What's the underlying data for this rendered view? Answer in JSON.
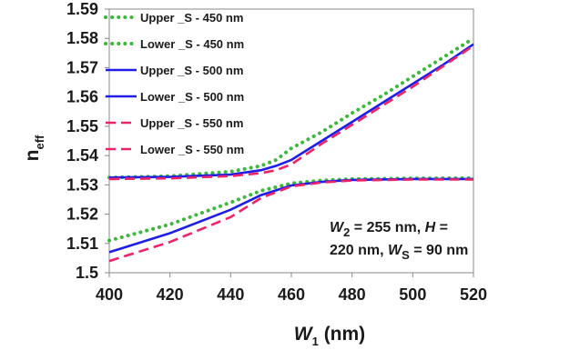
{
  "chart_data": {
    "type": "line",
    "xlabel": {
      "main": "W",
      "sub": "1",
      "unit": " (nm)"
    },
    "ylabel": {
      "main": "n",
      "sub": "eff"
    },
    "xlim": [
      400,
      520
    ],
    "ylim": [
      1.5,
      1.59
    ],
    "xticks": [
      400,
      420,
      440,
      460,
      480,
      500,
      520
    ],
    "yticks": [
      1.5,
      1.51,
      1.52,
      1.53,
      1.54,
      1.55,
      1.56,
      1.57,
      1.58,
      1.59
    ],
    "ytick_labels": [
      "1.5",
      "1.51",
      "1.52",
      "1.53",
      "1.54",
      "1.55",
      "1.56",
      "1.57",
      "1.58",
      "1.59"
    ],
    "grid": false,
    "legend_position": "top-left",
    "annotation": {
      "line1_prefix": "W",
      "line1_sub": "2",
      "line1_rest": " = 255 nm, ",
      "line1_h": "H",
      "line1_end": " =",
      "line2_start": "220 nm, ",
      "line2_w": "W",
      "line2_sub": "S",
      "line2_end": " = 90 nm"
    },
    "series": [
      {
        "name": "Upper _S - 450 nm",
        "color": "#3cb83c",
        "style": "dotted",
        "x": [
          400,
          420,
          440,
          450,
          455,
          460,
          470,
          480,
          490,
          500,
          510,
          520
        ],
        "y": [
          1.5325,
          1.533,
          1.5345,
          1.5365,
          1.5385,
          1.5425,
          1.548,
          1.5545,
          1.5605,
          1.567,
          1.5735,
          1.58
        ]
      },
      {
        "name": "Lower _S - 450 nm",
        "color": "#3cb83c",
        "style": "dotted",
        "x": [
          400,
          420,
          440,
          450,
          460,
          470,
          480,
          500,
          520
        ],
        "y": [
          1.511,
          1.5165,
          1.524,
          1.528,
          1.5305,
          1.5315,
          1.532,
          1.5322,
          1.5323
        ]
      },
      {
        "name": "Upper _S - 500 nm",
        "color": "#1e1ee6",
        "style": "solid",
        "x": [
          400,
          420,
          440,
          450,
          455,
          460,
          470,
          480,
          490,
          500,
          510,
          520
        ],
        "y": [
          1.5325,
          1.5327,
          1.5335,
          1.535,
          1.5365,
          1.5385,
          1.545,
          1.5515,
          1.558,
          1.5645,
          1.571,
          1.578
        ]
      },
      {
        "name": "Lower _S - 500 nm",
        "color": "#1e1ee6",
        "style": "solid",
        "x": [
          400,
          420,
          440,
          450,
          460,
          470,
          480,
          500,
          520
        ],
        "y": [
          1.507,
          1.5135,
          1.5215,
          1.5265,
          1.5298,
          1.531,
          1.5317,
          1.532,
          1.532
        ]
      },
      {
        "name": "Upper _S - 550 nm",
        "color": "#ee2266",
        "style": "dashed",
        "x": [
          400,
          420,
          440,
          450,
          455,
          460,
          470,
          480,
          490,
          500,
          510,
          520
        ],
        "y": [
          1.532,
          1.5322,
          1.533,
          1.534,
          1.535,
          1.537,
          1.544,
          1.5505,
          1.557,
          1.5635,
          1.5705,
          1.5775
        ]
      },
      {
        "name": "Lower _S - 550 nm",
        "color": "#ee2266",
        "style": "dashed",
        "x": [
          400,
          420,
          440,
          450,
          460,
          470,
          480,
          500,
          520
        ],
        "y": [
          1.504,
          1.5105,
          1.519,
          1.5255,
          1.5295,
          1.5308,
          1.5315,
          1.5318,
          1.5318
        ]
      }
    ]
  }
}
